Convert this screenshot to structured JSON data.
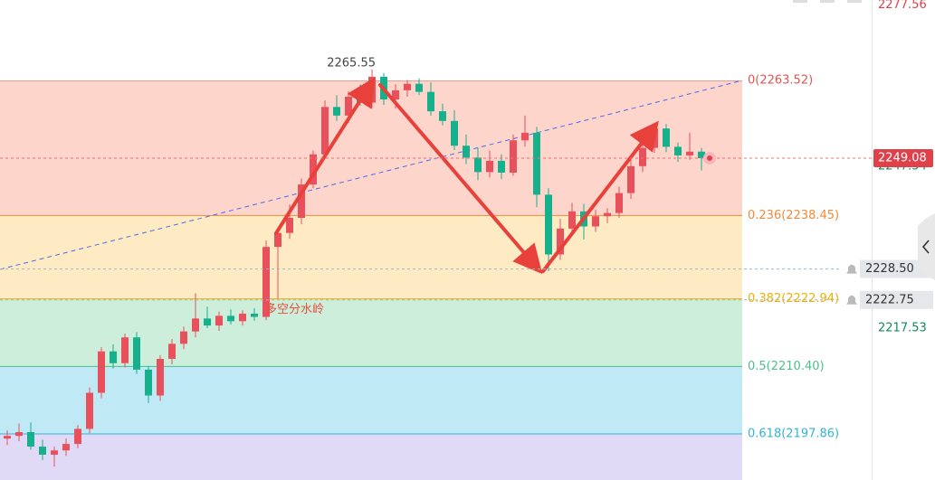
{
  "chart_data": {
    "type": "candlestick",
    "ylim": [
      2189.3,
      2278.47
    ],
    "open": [
      2197.0,
      2197.5,
      2198.2,
      2195.5,
      2194.0,
      2194.8,
      2196.0,
      2198.8,
      2205.5,
      2213.2,
      2211.0,
      2215.8,
      2209.8,
      2205.0,
      2211.8,
      2214.6,
      2216.9,
      2219.3,
      2218.0,
      2219.8,
      2218.8,
      2220.2,
      2219.6,
      2232.6,
      2235.2,
      2238.0,
      2244.2,
      2249.8,
      2258.6,
      2257.0,
      2260.5,
      2259.4,
      2264.2,
      2260.0,
      2261.7,
      2262.9,
      2261.4,
      2257.8,
      2256.0,
      2251.4,
      2249.2,
      2246.5,
      2248.6,
      2246.4,
      2252.4,
      2253.8,
      2242.3,
      2231.2,
      2236.0,
      2239.2,
      2236.4,
      2238.3,
      2238.9,
      2242.6,
      2247.6,
      2251.0,
      2254.6,
      2251.2,
      2249.6,
      2250.3
    ],
    "high": [
      2198.5,
      2199.8,
      2200.0,
      2196.8,
      2195.5,
      2197.0,
      2199.5,
      2206.5,
      2214.0,
      2214.5,
      2216.5,
      2216.8,
      2210.5,
      2212.5,
      2215.5,
      2217.8,
      2224.0,
      2221.5,
      2220.6,
      2221.0,
      2220.8,
      2221.2,
      2233.8,
      2235.9,
      2240.5,
      2245.3,
      2250.5,
      2259.8,
      2260.8,
      2261.5,
      2262.8,
      2265.55,
      2264.9,
      2262.8,
      2263.6,
      2263.9,
      2263.2,
      2259.2,
      2258.0,
      2253.5,
      2251.0,
      2250.5,
      2249.8,
      2253.5,
      2257.0,
      2254.9,
      2243.5,
      2237.8,
      2240.8,
      2240.6,
      2239.5,
      2239.8,
      2243.8,
      2248.8,
      2252.2,
      2255.5,
      2255.4,
      2252.0,
      2253.8,
      2251.0
    ],
    "low": [
      2195.8,
      2196.5,
      2194.9,
      2193.0,
      2191.8,
      2193.8,
      2195.2,
      2198.0,
      2204.5,
      2210.0,
      2210.2,
      2209.0,
      2203.6,
      2204.0,
      2210.8,
      2213.6,
      2215.8,
      2217.5,
      2217.0,
      2218.2,
      2218.0,
      2218.9,
      2219.0,
      2223.0,
      2234.1,
      2236.8,
      2243.5,
      2249.0,
      2256.0,
      2255.6,
      2258.8,
      2258.5,
      2259.0,
      2258.3,
      2260.5,
      2260.8,
      2257.0,
      2255.2,
      2250.6,
      2248.0,
      2245.0,
      2245.5,
      2245.2,
      2245.8,
      2251.2,
      2240.0,
      2228.1,
      2230.2,
      2235.0,
      2234.0,
      2235.4,
      2237.0,
      2238.0,
      2241.5,
      2246.5,
      2250.1,
      2250.2,
      2248.4,
      2248.8,
      2246.8
    ],
    "close": [
      2197.5,
      2198.2,
      2195.5,
      2194.0,
      2194.8,
      2196.0,
      2198.8,
      2205.5,
      2213.2,
      2211.0,
      2215.8,
      2209.8,
      2205.0,
      2211.8,
      2214.6,
      2216.9,
      2219.3,
      2218.0,
      2219.8,
      2218.8,
      2220.2,
      2219.6,
      2232.6,
      2235.2,
      2238.0,
      2244.2,
      2249.8,
      2258.6,
      2257.0,
      2260.5,
      2259.4,
      2264.2,
      2260.0,
      2261.7,
      2262.9,
      2261.4,
      2257.8,
      2256.0,
      2251.4,
      2249.2,
      2246.5,
      2248.6,
      2246.4,
      2252.4,
      2253.8,
      2242.3,
      2231.2,
      2236.0,
      2239.2,
      2236.4,
      2238.3,
      2238.9,
      2242.6,
      2247.6,
      2251.0,
      2254.6,
      2251.2,
      2249.6,
      2250.3,
      2249.08
    ],
    "up_color": "#e8505b",
    "down_color": "#16b08c",
    "yticks": [
      2277.56,
      2247.54,
      2217.53
    ],
    "last_price": 2249.08,
    "alerts": [
      {
        "value": 2228.5,
        "label": "2228.50"
      },
      {
        "value": 2222.75,
        "label": "2222.75"
      }
    ],
    "fib_levels": [
      {
        "label": "0(2263.52)",
        "value": 2263.52,
        "color": "#e0574f",
        "fill": "#fdd5cb"
      },
      {
        "label": "0.236(2238.45)",
        "value": 2238.45,
        "color": "#f08a3a",
        "fill": "#feebc3"
      },
      {
        "label": "0.382(2222.94)",
        "value": 2222.94,
        "color": "#eeb000",
        "fill": "#cdeedb"
      },
      {
        "label": "0.5(2210.40)",
        "value": 2210.4,
        "color": "#4cbf8a",
        "fill": "#bfe9f4"
      },
      {
        "label": "0.618(2197.86)",
        "value": 2197.86,
        "color": "#33b4d6",
        "fill": "#e1daf6"
      }
    ],
    "annotation": "多空分水岭"
  }
}
